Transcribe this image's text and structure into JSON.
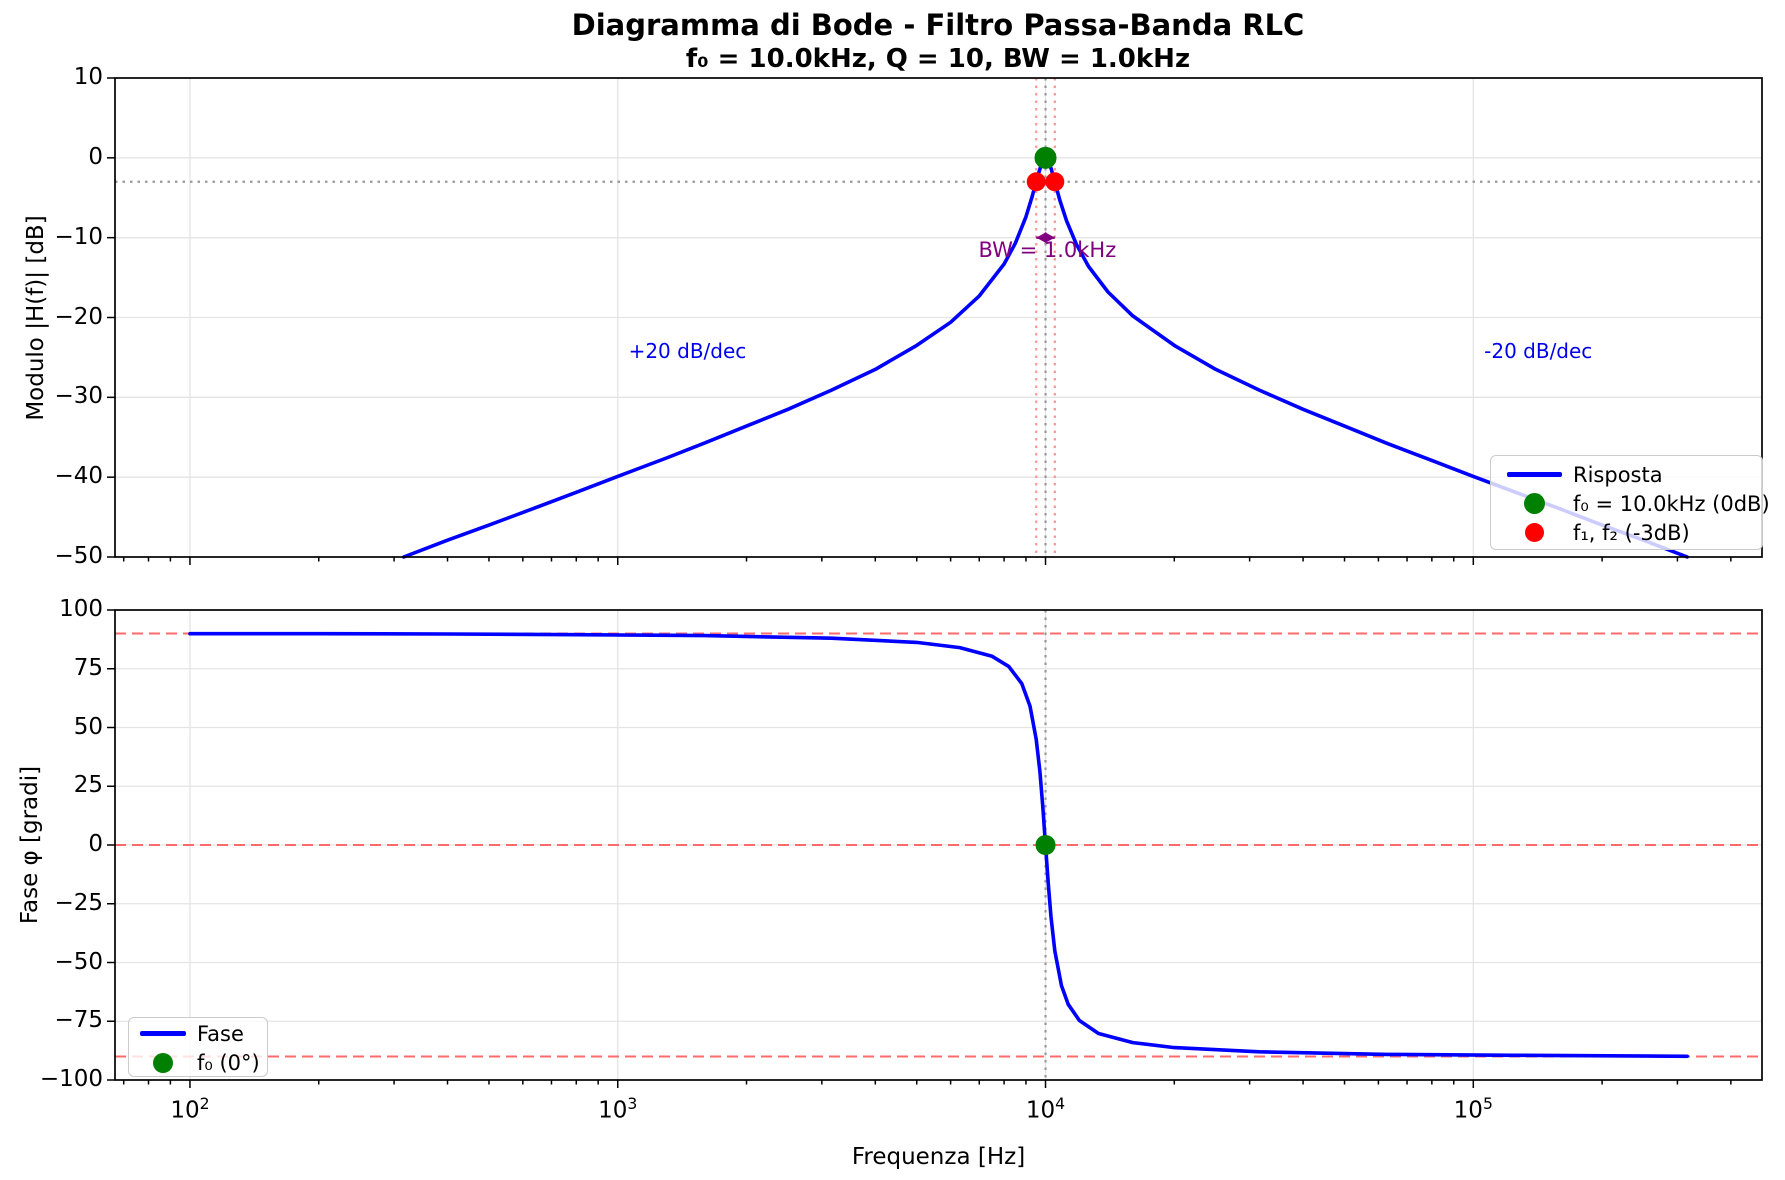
{
  "title": "Diagramma di Bode - Filtro Passa-Banda RLC",
  "subtitle": "f₀ = 10.0kHz, Q = 10, BW = 1.0kHz",
  "colors": {
    "curve": "#0000ff",
    "grid": "#e4e4e4",
    "spine": "#000000",
    "dotted_gray": "#9a9a9a",
    "dotted_pink": "#ff9595",
    "dashed_red": "#ff6b6b",
    "marker_green": "#008000",
    "marker_red": "#ff0000",
    "annotation_blue": "#0000ee",
    "annotation_purple": "#800080"
  },
  "chart_data": [
    {
      "id": "magnitude",
      "type": "line",
      "x_scale": "log",
      "xlim": [
        66.8,
        473000
      ],
      "ylim": [
        -50,
        10
      ],
      "ylabel": "Modulo |H(f)| [dB]",
      "yticks": [
        10,
        0,
        -10,
        -20,
        -30,
        -40,
        -50
      ],
      "ytick_labels": [
        "10",
        "0",
        "−10",
        "−20",
        "−30",
        "−40",
        "−50"
      ],
      "grid": true,
      "parameters": {
        "f0_hz": 10000,
        "Q": 10,
        "BW_hz": 1000
      },
      "series": [
        {
          "name": "Risposta",
          "color": "#0000ff",
          "x": [
            316,
            400,
            500,
            630,
            800,
            1000,
            1300,
            1600,
            2000,
            2500,
            3160,
            4000,
            5000,
            6000,
            7000,
            8000,
            8500,
            9000,
            9300,
            9512,
            9700,
            9850,
            10000,
            10150,
            10300,
            10512,
            10800,
            11200,
            11800,
            12600,
            14000,
            16000,
            20000,
            25000,
            31600,
            40000,
            50000,
            63000,
            80000,
            100000,
            130000,
            160000,
            200000,
            250000,
            316228
          ],
          "y": [
            -50,
            -47.9,
            -46,
            -44,
            -41.9,
            -39.9,
            -37.6,
            -35.7,
            -33.6,
            -31.5,
            -29.1,
            -26.5,
            -23.5,
            -20.6,
            -17.3,
            -13.3,
            -10.7,
            -7.4,
            -4.9,
            -3,
            -1.4,
            -0.4,
            0,
            -0.4,
            -1.3,
            -3,
            -5.3,
            -7.9,
            -10.8,
            -13.6,
            -16.8,
            -19.8,
            -23.5,
            -26.5,
            -29.1,
            -31.5,
            -33.6,
            -35.8,
            -37.9,
            -39.9,
            -42.2,
            -44,
            -46,
            -47.9,
            -50
          ]
        }
      ],
      "markers": [
        {
          "name": "f0",
          "f": 10000,
          "db": 0,
          "color": "#008000",
          "r": 11
        },
        {
          "name": "f1",
          "f": 9512.5,
          "db": -3,
          "color": "#ff0000",
          "r": 9.5
        },
        {
          "name": "f2",
          "f": 10512.5,
          "db": -3,
          "color": "#ff0000",
          "r": 9.5
        }
      ],
      "hlines": [
        {
          "db": -3,
          "style": "dotted",
          "color": "#9a9a9a"
        }
      ],
      "vlines": [
        {
          "f": 9512.5,
          "style": "dotted",
          "color": "#ff9595"
        },
        {
          "f": 10512.5,
          "style": "dotted",
          "color": "#ff9595"
        },
        {
          "f": 10000,
          "style": "dotted",
          "color": "#9a9a9a"
        }
      ],
      "annotations": [
        {
          "text": "+20 dB/dec",
          "f": 1060,
          "db": -24.3,
          "ha": "left",
          "color": "#0000ee"
        },
        {
          "text": "-20 dB/dec",
          "f": 106000,
          "db": -24.3,
          "ha": "left",
          "color": "#0000ee"
        },
        {
          "text": "BW = 1.0kHz",
          "f": 10100,
          "db": -11.7,
          "ha": "center",
          "color": "#800080"
        }
      ],
      "bw_arrow": {
        "f1": 9512.5,
        "f2": 10512.5,
        "db": -10,
        "color": "#800080"
      },
      "legend": {
        "loc": "lower right",
        "items": [
          {
            "label": "Risposta",
            "swatch": "line",
            "color": "#0000ff"
          },
          {
            "label": "f₀ = 10.0kHz (0dB)",
            "swatch": "dot",
            "color": "#008000"
          },
          {
            "label": "f₁, f₂ (-3dB)",
            "swatch": "dot",
            "color": "#ff0000"
          }
        ]
      }
    },
    {
      "id": "phase",
      "type": "line",
      "x_scale": "log",
      "xlim": [
        66.8,
        473000
      ],
      "ylim": [
        -100,
        100
      ],
      "ylabel": "Fase φ [gradi]",
      "xlabel": "Frequenza [Hz]",
      "yticks": [
        100,
        75,
        50,
        25,
        0,
        -25,
        -50,
        -75,
        -100
      ],
      "ytick_labels": [
        "100",
        "75",
        "50",
        "25",
        "0",
        "−25",
        "−50",
        "−75",
        "−100"
      ],
      "xticks": [
        100,
        1000,
        10000,
        100000
      ],
      "xtick_exponents": [
        2,
        3,
        4,
        5
      ],
      "grid": true,
      "series": [
        {
          "name": "Fase",
          "color": "#0000ff",
          "x": [
            100,
            200,
            400,
            800,
            1600,
            3160,
            5000,
            6300,
            7500,
            8200,
            8800,
            9200,
            9512,
            9700,
            9850,
            10000,
            10150,
            10300,
            10512,
            10900,
            11300,
            12000,
            13300,
            16000,
            20000,
            31600,
            63000,
            125000,
            316228
          ],
          "y": [
            89.9,
            89.9,
            89.8,
            89.5,
            89.1,
            88,
            86.2,
            84,
            80.3,
            76,
            68.7,
            59.1,
            45,
            31.3,
            16.8,
            0,
            -16.6,
            -30.6,
            -45,
            -59.9,
            -67.8,
            -74.7,
            -80.2,
            -84.1,
            -86.2,
            -88,
            -89.1,
            -89.5,
            -89.9
          ]
        }
      ],
      "markers": [
        {
          "name": "f0",
          "f": 10000,
          "deg": 0,
          "color": "#008000",
          "r": 10
        }
      ],
      "hlines": [
        {
          "deg": 90,
          "style": "dashed",
          "color": "#ff6b6b"
        },
        {
          "deg": 0,
          "style": "dashed",
          "color": "#ff6b6b"
        },
        {
          "deg": -90,
          "style": "dashed",
          "color": "#ff6b6b"
        }
      ],
      "vlines": [
        {
          "f": 10000,
          "style": "dotted",
          "color": "#9a9a9a"
        }
      ],
      "legend": {
        "loc": "lower left",
        "items": [
          {
            "label": "Fase",
            "swatch": "line",
            "color": "#0000ff"
          },
          {
            "label": "f₀ (0°)",
            "swatch": "dot",
            "color": "#008000"
          }
        ]
      }
    }
  ]
}
